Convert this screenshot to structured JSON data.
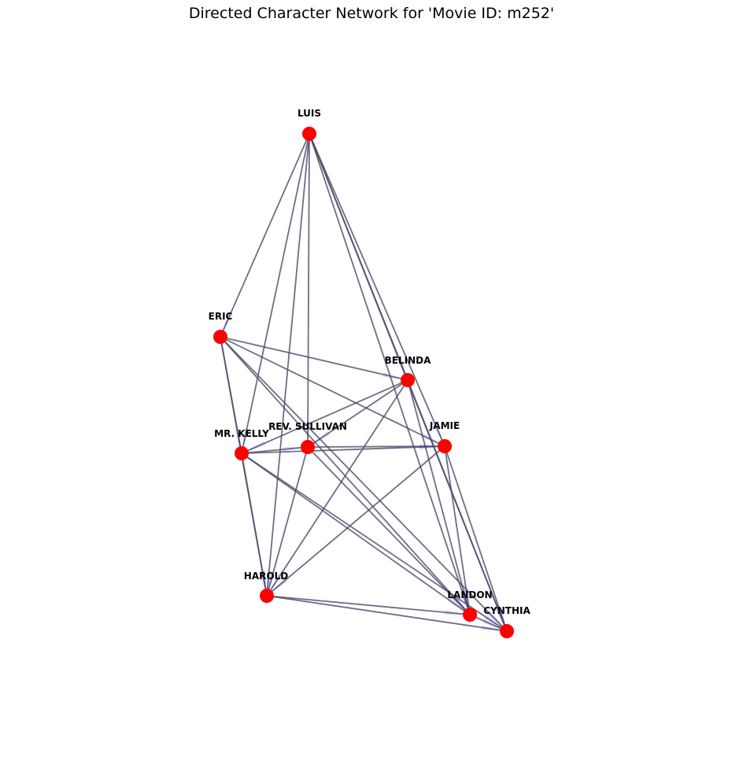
{
  "title": "Directed Character Network for 'Movie ID: m252'",
  "colors": {
    "node_fill": "#ff0000",
    "edge": "#4a4a6a",
    "arrow": "#2f2fbf",
    "label": "#000000",
    "background": "#ffffff"
  },
  "nodes": [
    {
      "id": "LUIS",
      "label": "LUIS"
    },
    {
      "id": "ERIC",
      "label": "ERIC"
    },
    {
      "id": "BELINDA",
      "label": "BELINDA"
    },
    {
      "id": "MR. KELLY",
      "label": "MR. KELLY"
    },
    {
      "id": "REV. SULLIVAN",
      "label": "REV. SULLIVAN"
    },
    {
      "id": "JAMIE",
      "label": "JAMIE"
    },
    {
      "id": "HAROLD",
      "label": "HAROLD"
    },
    {
      "id": "LANDON",
      "label": "LANDON"
    },
    {
      "id": "CYNTHIA",
      "label": "CYNTHIA"
    }
  ],
  "edges": [
    [
      "LUIS",
      "ERIC"
    ],
    [
      "LUIS",
      "MR. KELLY"
    ],
    [
      "LUIS",
      "REV. SULLIVAN"
    ],
    [
      "LUIS",
      "HAROLD"
    ],
    [
      "LUIS",
      "BELINDA"
    ],
    [
      "LUIS",
      "JAMIE"
    ],
    [
      "LUIS",
      "LANDON"
    ],
    [
      "LUIS",
      "CYNTHIA"
    ],
    [
      "ERIC",
      "BELINDA"
    ],
    [
      "ERIC",
      "JAMIE"
    ],
    [
      "ERIC",
      "MR. KELLY"
    ],
    [
      "ERIC",
      "HAROLD"
    ],
    [
      "ERIC",
      "LANDON"
    ],
    [
      "ERIC",
      "CYNTHIA"
    ],
    [
      "BELINDA",
      "MR. KELLY"
    ],
    [
      "BELINDA",
      "REV. SULLIVAN"
    ],
    [
      "BELINDA",
      "HAROLD"
    ],
    [
      "BELINDA",
      "LANDON"
    ],
    [
      "BELINDA",
      "CYNTHIA"
    ],
    [
      "MR. KELLY",
      "JAMIE"
    ],
    [
      "MR. KELLY",
      "REV. SULLIVAN"
    ],
    [
      "MR. KELLY",
      "HAROLD"
    ],
    [
      "MR. KELLY",
      "LANDON"
    ],
    [
      "MR. KELLY",
      "CYNTHIA"
    ],
    [
      "REV. SULLIVAN",
      "JAMIE"
    ],
    [
      "REV. SULLIVAN",
      "HAROLD"
    ],
    [
      "REV. SULLIVAN",
      "LANDON"
    ],
    [
      "JAMIE",
      "HAROLD"
    ],
    [
      "JAMIE",
      "LANDON"
    ],
    [
      "JAMIE",
      "CYNTHIA"
    ],
    [
      "HAROLD",
      "LANDON"
    ],
    [
      "HAROLD",
      "CYNTHIA"
    ],
    [
      "LANDON",
      "CYNTHIA"
    ]
  ]
}
